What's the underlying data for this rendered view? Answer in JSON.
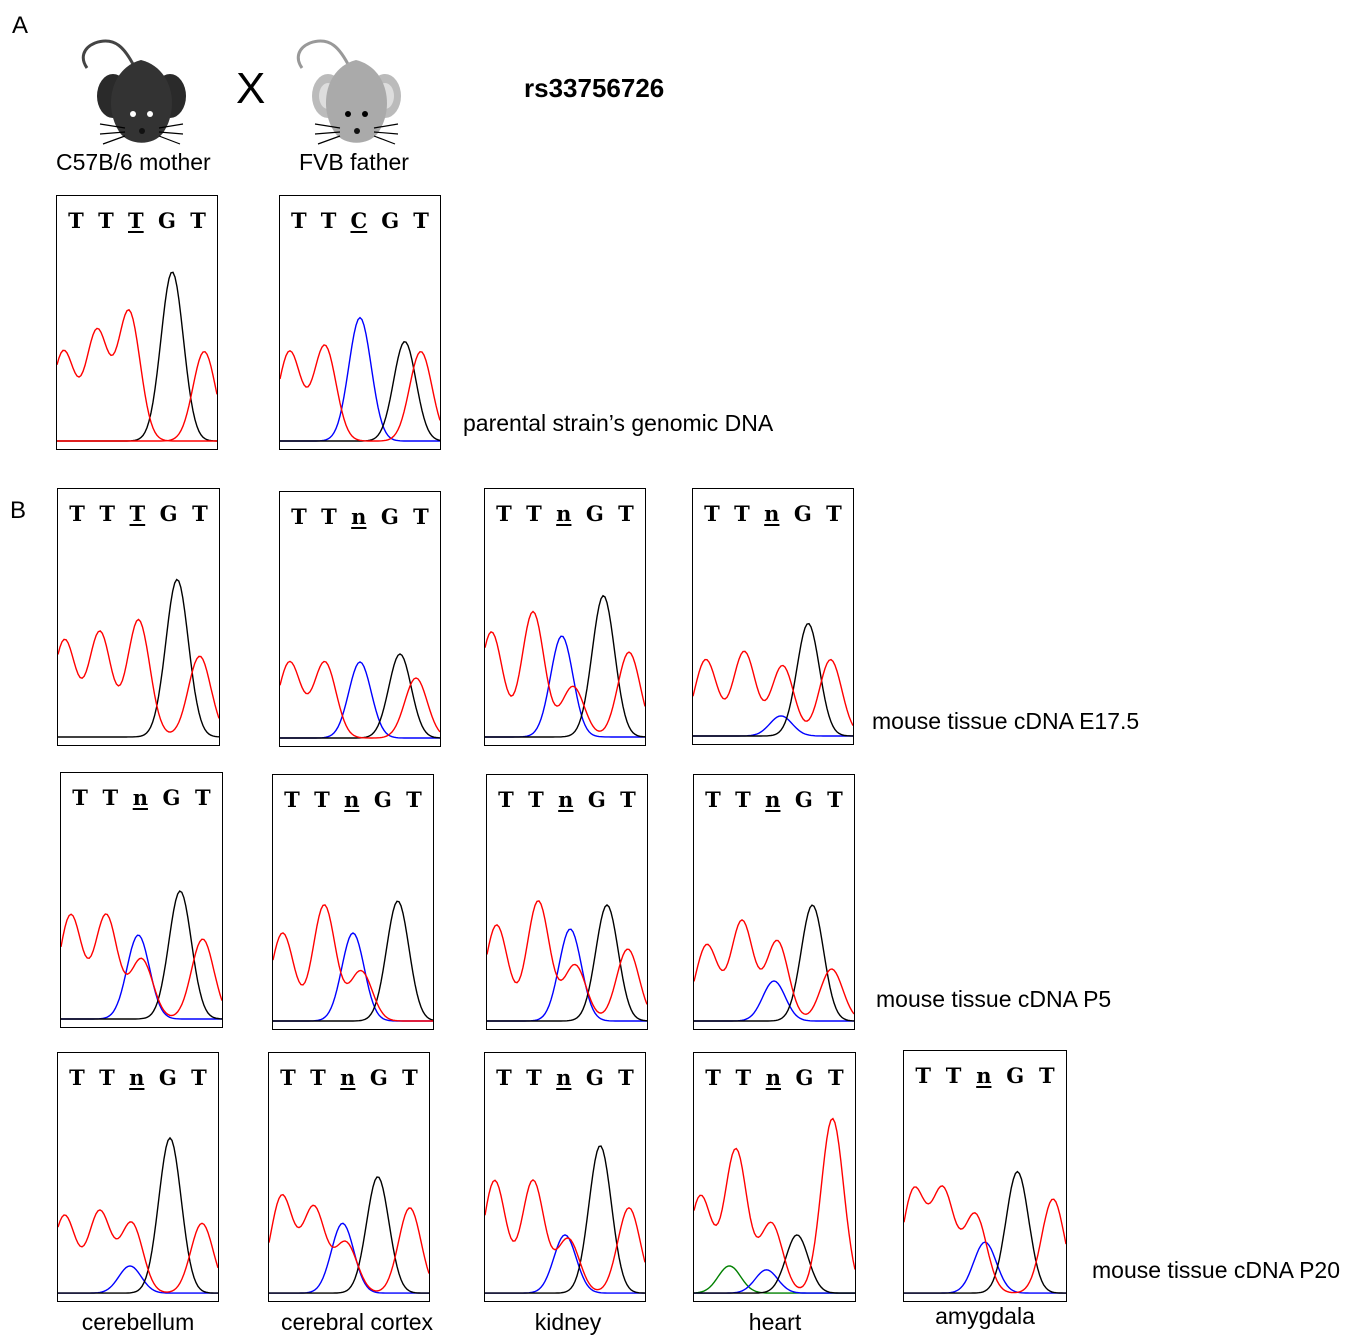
{
  "panelA": {
    "label": "A",
    "cross_symbol": "X",
    "snp_title": "rs33756726",
    "mother_label": "C57B/6  mother",
    "father_label": "FVB father",
    "row_caption": "parental strain’s genomic DNA",
    "mother_seq": [
      "T",
      "T",
      "T",
      "G",
      "T"
    ],
    "father_seq": [
      "T",
      "T",
      "C",
      "G",
      "T"
    ]
  },
  "panelB": {
    "label": "B",
    "row1_caption": "mouse tissue cDNA E17.5",
    "row2_caption": "mouse tissue cDNA P5",
    "row3_caption": "mouse tissue cDNA P20",
    "seq_maternal": [
      "T",
      "T",
      "T",
      "G",
      "T"
    ],
    "seq_het": [
      "T",
      "T",
      "n",
      "G",
      "T"
    ],
    "tissues": [
      "cerebellum",
      "cerebral cortex",
      "kidney",
      "heart",
      "amygdala"
    ]
  },
  "colors": {
    "T": "#ff0000",
    "C": "#0000ff",
    "G": "#000000",
    "A": "#008000"
  }
}
